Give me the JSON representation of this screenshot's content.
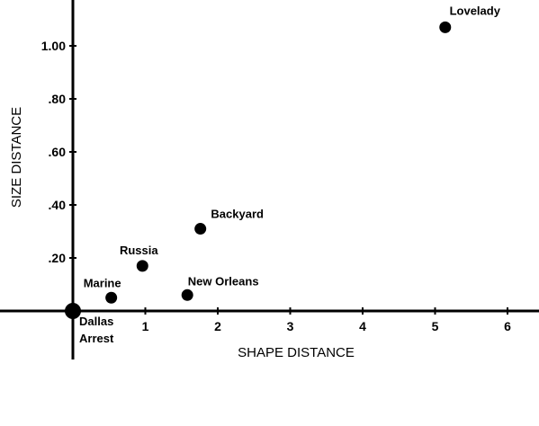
{
  "chart_data": {
    "type": "scatter",
    "title": "",
    "xlabel": "SHAPE DISTANCE",
    "ylabel": "SIZE DISTANCE",
    "xlim": [
      0,
      6.4
    ],
    "ylim": [
      -0.18,
      1.18
    ],
    "x_ticks": [
      {
        "value": 1,
        "label": "1"
      },
      {
        "value": 2,
        "label": "2"
      },
      {
        "value": 3,
        "label": "3"
      },
      {
        "value": 4,
        "label": "4"
      },
      {
        "value": 5,
        "label": "5"
      },
      {
        "value": 6,
        "label": "6"
      }
    ],
    "y_ticks": [
      {
        "value": 0.2,
        "label": ".20"
      },
      {
        "value": 0.4,
        "label": ".40"
      },
      {
        "value": 0.6,
        "label": ".60"
      },
      {
        "value": 0.8,
        "label": ".80"
      },
      {
        "value": 1.0,
        "label": "1.00"
      }
    ],
    "grid": false,
    "points": [
      {
        "label": "Dallas Arrest",
        "x": 0.0,
        "y": 0.0
      },
      {
        "label": "Marine",
        "x": 0.53,
        "y": 0.05
      },
      {
        "label": "Russia",
        "x": 0.96,
        "y": 0.17
      },
      {
        "label": "New Orleans",
        "x": 1.58,
        "y": 0.06
      },
      {
        "label": "Backyard",
        "x": 1.76,
        "y": 0.31
      },
      {
        "label": "Lovelady",
        "x": 5.14,
        "y": 1.07
      }
    ]
  }
}
